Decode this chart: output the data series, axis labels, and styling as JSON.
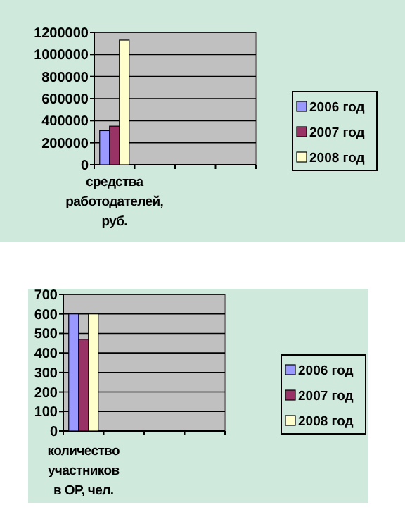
{
  "chart_data": [
    {
      "type": "bar",
      "categories": [
        "средства работодателей, руб.",
        null,
        null,
        null
      ],
      "series": [
        {
          "name": "2006 год",
          "color": "#9999ff",
          "values": [
            310000,
            null,
            null,
            null
          ]
        },
        {
          "name": "2007 год",
          "color": "#993366",
          "values": [
            350000,
            null,
            null,
            null
          ]
        },
        {
          "name": "2008 год",
          "color": "#ffffcc",
          "values": [
            1130000,
            null,
            null,
            null
          ]
        }
      ],
      "ylim": [
        0,
        1200000
      ],
      "yticks": [
        0,
        200000,
        400000,
        600000,
        800000,
        1000000,
        1200000
      ],
      "grid": "y",
      "legend": "right"
    },
    {
      "type": "bar",
      "categories": [
        "количество участников в ОР, чел.",
        null,
        null,
        null
      ],
      "series": [
        {
          "name": "2006 год",
          "color": "#9999ff",
          "values": [
            600,
            null,
            null,
            null
          ]
        },
        {
          "name": "2007 год",
          "color": "#993366",
          "values": [
            470,
            null,
            null,
            null
          ]
        },
        {
          "name": "2008 год",
          "color": "#ffffcc",
          "values": [
            600,
            null,
            null,
            null
          ]
        }
      ],
      "ylim": [
        0,
        700
      ],
      "yticks": [
        0,
        100,
        200,
        300,
        400,
        500,
        600,
        700
      ],
      "grid": "y",
      "legend": "right"
    }
  ]
}
